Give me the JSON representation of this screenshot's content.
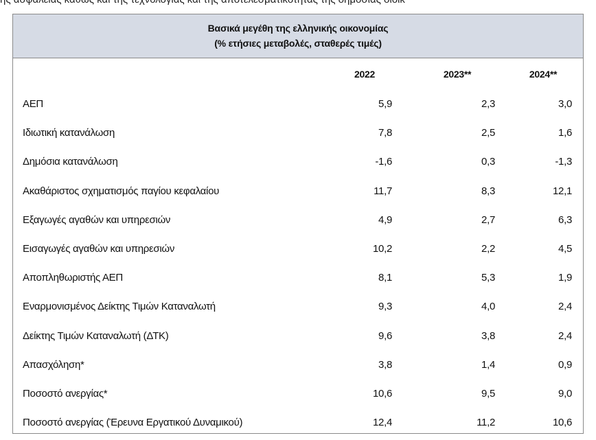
{
  "top_text": "ης ασφάλειας καθώς και της τεχνολογίας και της αποτελεσματικότητας της δημόσιας διοίκ",
  "table": {
    "title": [
      "Βασικά μεγέθη της ελληνικής οικονομίας",
      "(% ετήσιες μεταβολές, σταθερές τιμές)"
    ],
    "columns": [
      "2022",
      "2023**",
      "2024**"
    ],
    "rows": [
      [
        "ΑΕΠ",
        "5,9",
        "2,3",
        "3,0"
      ],
      [
        "Ιδιωτική κατανάλωση",
        "7,8",
        "2,5",
        "1,6"
      ],
      [
        "Δημόσια κατανάλωση",
        "-1,6",
        "0,3",
        "-1,3"
      ],
      [
        "Ακαθάριστος σχηματισμός παγίου κεφαλαίου",
        "11,7",
        "8,3",
        "12,1"
      ],
      [
        "Εξαγωγές αγαθών και υπηρεσιών",
        "4,9",
        "2,7",
        "6,3"
      ],
      [
        "Εισαγωγές αγαθών και υπηρεσιών",
        "10,2",
        "2,2",
        "4,5"
      ],
      [
        "Αποπληθωριστής ΑΕΠ",
        "8,1",
        "5,3",
        "1,9"
      ],
      [
        "Εναρμονισμένος Δείκτης Τιμών Καταναλωτή",
        "9,3",
        "4,0",
        "2,4"
      ],
      [
        "Δείκτης Τιμών Καταναλωτή (ΔΤΚ)",
        "9,6",
        "3,8",
        "2,4"
      ],
      [
        "Απασχόληση*",
        "3,8",
        "1,4",
        "0,9"
      ],
      [
        "Ποσοστό ανεργίας*",
        "10,6",
        "9,5",
        "9,0"
      ],
      [
        "Ποσοστό ανεργίας (Έρευνα Εργατικού Δυναμικού)",
        "12,4",
        "11,2",
        "10,6"
      ]
    ]
  }
}
